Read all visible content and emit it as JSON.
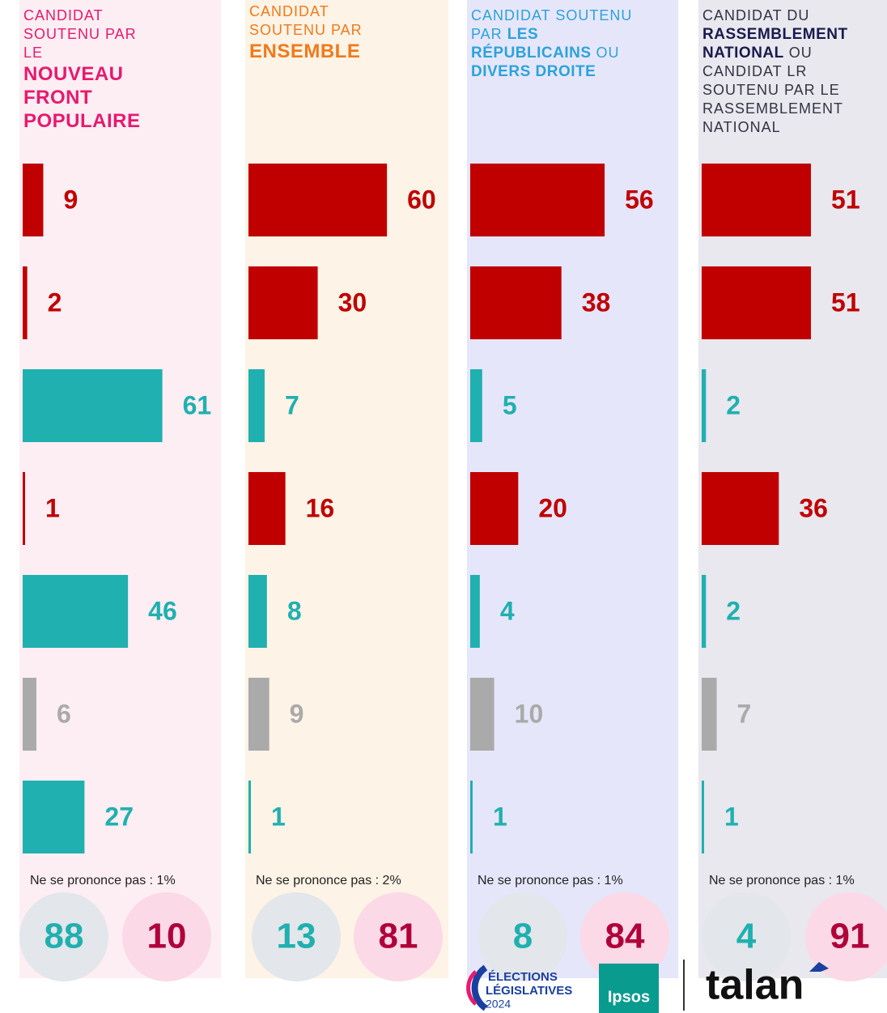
{
  "chart_data": [
    {
      "type": "hbar",
      "panel_color": "#fdeef3",
      "header_color": "#e8196e",
      "bold_color": "#e8196e",
      "title_parts": [
        {
          "text": "CANDIDAT SOUTENU PAR LE",
          "bold": false
        },
        {
          "text": "NOUVEAU FRONT POPULAIRE",
          "bold": true
        }
      ],
      "values": [
        9,
        2,
        61,
        1,
        46,
        6,
        27
      ],
      "colors": [
        "#c00000",
        "#c00000",
        "#20b0b0",
        "#c00000",
        "#20b0b0",
        "#aaaaaa",
        "#20b0b0"
      ],
      "xlim": [
        0,
        88
      ],
      "note": "Ne se prononce pas : 1%",
      "summary": [
        88,
        10
      ],
      "summary_colors": [
        "#20b0b0",
        "#b0003a"
      ],
      "summary_fills": [
        "#e3e6ea",
        "#fbd9e6"
      ]
    },
    {
      "type": "hbar",
      "panel_color": "#fdf3e6",
      "header_color": "#f07a1a",
      "bold_color": "#f07a1a",
      "title_parts": [
        {
          "text": "CANDIDAT SOUTENU PAR",
          "bold": false
        },
        {
          "text": "ENSEMBLE",
          "bold": true
        }
      ],
      "values": [
        60,
        30,
        7,
        16,
        8,
        9,
        1
      ],
      "colors": [
        "#c00000",
        "#c00000",
        "#20b0b0",
        "#c00000",
        "#20b0b0",
        "#aaaaaa",
        "#20b0b0"
      ],
      "xlim": [
        0,
        88
      ],
      "note": "Ne se prononce pas : 2%",
      "summary": [
        13,
        81
      ],
      "summary_colors": [
        "#20b0b0",
        "#b0003a"
      ],
      "summary_fills": [
        "#e3e6ea",
        "#fbd9e6"
      ]
    },
    {
      "type": "hbar",
      "panel_color": "#e6e6fa",
      "header_color": "#2aa3dc",
      "bold_color": "#2aa3dc",
      "title_parts": [
        {
          "text": "CANDIDAT SOUTENU PAR",
          "bold": false
        },
        {
          "text": "LES RÉPUBLICAINS",
          "bold": true
        },
        {
          "text": "OU",
          "bold": false
        },
        {
          "text": "DIVERS DROITE",
          "bold": true
        }
      ],
      "values": [
        56,
        38,
        5,
        20,
        4,
        10,
        1
      ],
      "colors": [
        "#c00000",
        "#c00000",
        "#20b0b0",
        "#c00000",
        "#20b0b0",
        "#aaaaaa",
        "#20b0b0"
      ],
      "xlim": [
        0,
        88
      ],
      "note": "Ne se prononce pas : 1%",
      "summary": [
        8,
        84
      ],
      "summary_colors": [
        "#20b0b0",
        "#b0003a"
      ],
      "summary_fills": [
        "#e3e6ea",
        "#fbd9e6"
      ]
    },
    {
      "type": "hbar",
      "panel_color": "#e8e8ee",
      "header_color": "#333344",
      "bold_color": "#1a1a4e",
      "title_parts": [
        {
          "text": "CANDIDAT DU",
          "bold": false
        },
        {
          "text": "RASSEMBLEMENT NATIONAL",
          "bold": true
        },
        {
          "text": "OU CANDIDAT LR SOUTENU PAR LE RASSEMBLEMENT NATIONAL",
          "bold": false
        }
      ],
      "values": [
        51,
        51,
        2,
        36,
        2,
        7,
        1
      ],
      "colors": [
        "#c00000",
        "#c00000",
        "#20b0b0",
        "#c00000",
        "#20b0b0",
        "#aaaaaa",
        "#20b0b0"
      ],
      "xlim": [
        0,
        88
      ],
      "note": "Ne se prononce pas : 1%",
      "summary": [
        4,
        91
      ],
      "summary_colors": [
        "#20b0b0",
        "#b0003a"
      ],
      "summary_fills": [
        "#e3e6ea",
        "#fbd9e6"
      ]
    }
  ],
  "footer": {
    "elections": "ÉLECTIONS",
    "legislatives": "LÉGISLATIVES",
    "year": "2024",
    "ipsos": "Ipsos",
    "talan": "talan"
  }
}
